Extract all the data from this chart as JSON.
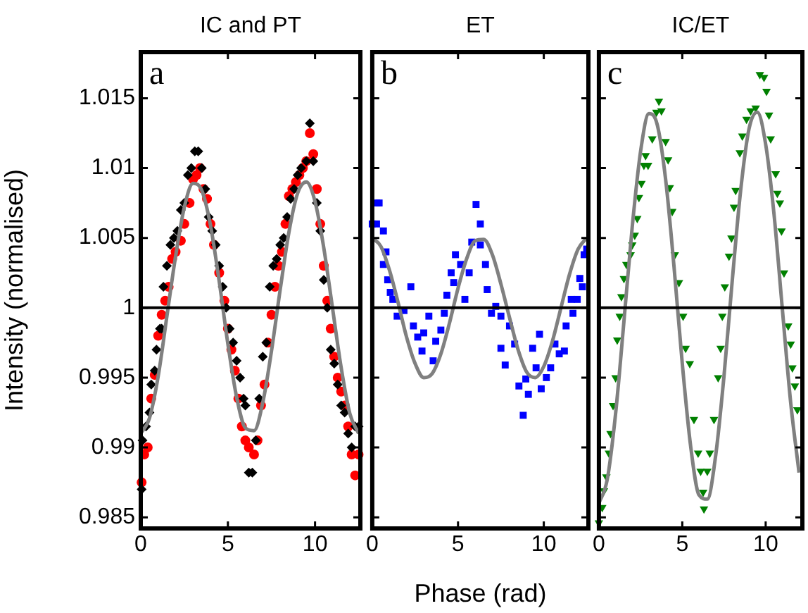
{
  "chart_data": [
    {
      "type": "scatter",
      "title": "IC and PT",
      "ylabel": "Intensity (normalised)",
      "annotations": [
        "a"
      ],
      "xlim": [
        0,
        12.6
      ],
      "xticks": [
        0,
        5,
        10
      ],
      "ylim": [
        0.9842,
        1.0183
      ],
      "yticks": [
        0.985,
        0.99,
        0.995,
        1,
        1.005,
        1.01,
        1.015
      ],
      "grid": false,
      "legend": false,
      "ref_lines": [
        {
          "axis": "y",
          "value": 1,
          "color": "#000000"
        }
      ],
      "series": [
        {
          "marker": "diamond",
          "color": "#000000",
          "x": [
            0.05,
            0.1,
            0.3,
            0.5,
            0.6,
            0.8,
            0.9,
            1.1,
            1.2,
            1.3,
            1.5,
            1.7,
            1.9,
            2.1,
            2.3,
            2.5,
            2.7,
            2.9,
            3.1,
            3.3,
            3.5,
            3.7,
            3.9,
            4.1,
            4.3,
            4.5,
            4.7,
            4.9,
            5.1,
            5.3,
            5.5,
            5.7,
            5.9,
            6.0,
            6.2,
            6.4,
            6.6,
            6.8,
            7.0,
            7.2,
            7.4,
            7.6,
            7.8,
            8.0,
            8.2,
            8.4,
            8.6,
            8.8,
            9.0,
            9.2,
            9.5,
            9.7,
            9.9,
            10.1,
            10.3,
            10.5,
            10.7,
            10.9,
            11.1,
            11.3,
            11.5,
            11.7,
            11.9,
            12.1,
            12.3,
            12.5
          ],
          "values": [
            0.987,
            0.9905,
            0.9915,
            0.9925,
            0.9945,
            0.9955,
            0.997,
            0.9985,
            0.9985,
            1.0015,
            1.003,
            1.0045,
            1.005,
            1.0055,
            1.007,
            1.0075,
            1.0095,
            1.01,
            1.0112,
            1.0112,
            1.01,
            1.0085,
            1.0065,
            1.0055,
            1.0045,
            1.003,
            1.0015,
            1.0,
            0.9985,
            0.9975,
            0.9962,
            0.995,
            0.9935,
            0.993,
            0.9882,
            0.9882,
            0.9905,
            0.9935,
            0.9965,
            0.9975,
            1.0015,
            1.003,
            1.0035,
            1.0045,
            1.005,
            1.0065,
            1.0078,
            1.0085,
            1.0095,
            1.01,
            1.0105,
            1.0132,
            1.0105,
            1.0075,
            1.0055,
            1.002,
            1.0,
            0.997,
            0.996,
            0.9945,
            0.993,
            0.9925,
            0.991,
            0.99,
            0.9915,
            0.9915
          ]
        },
        {
          "marker": "circle",
          "color": "#ff0000",
          "x": [
            0.05,
            0.2,
            0.4,
            0.6,
            0.8,
            1.0,
            1.2,
            1.4,
            1.6,
            1.8,
            2.0,
            2.3,
            2.5,
            2.8,
            3.0,
            3.2,
            3.4,
            3.6,
            3.8,
            4.0,
            4.2,
            4.5,
            4.8,
            5.0,
            5.2,
            5.4,
            5.6,
            5.8,
            6.0,
            6.2,
            6.5,
            6.7,
            6.9,
            7.1,
            7.3,
            7.5,
            7.7,
            7.9,
            8.1,
            8.3,
            8.5,
            8.7,
            8.9,
            9.1,
            9.3,
            9.5,
            9.7,
            9.9,
            10.1,
            10.3,
            10.5,
            10.7,
            10.9,
            11.1,
            11.3,
            11.5,
            11.7,
            11.9,
            12.1,
            12.3,
            12.5
          ],
          "values": [
            0.9875,
            0.9895,
            0.99,
            0.9935,
            0.9952,
            0.998,
            0.9995,
            1.0005,
            1.0015,
            1.0035,
            1.004,
            1.0048,
            1.006,
            1.0075,
            1.0092,
            1.0095,
            1.01,
            1.0085,
            1.0078,
            1.006,
            1.0045,
            1.0025,
            1.0005,
            0.9985,
            0.997,
            0.9955,
            0.9935,
            0.9915,
            0.9905,
            0.99,
            0.9895,
            0.9905,
            0.993,
            0.9945,
            0.9975,
            0.9995,
            1.0015,
            1.003,
            1.004,
            1.006,
            1.008,
            1.0085,
            1.009,
            1.0095,
            1.01,
            1.0105,
            1.0125,
            1.011,
            1.0085,
            1.006,
            1.003,
            1.0005,
            0.9985,
            0.9965,
            0.995,
            0.994,
            0.993,
            0.9915,
            0.9895,
            0.988,
            0.9895
          ]
        },
        {
          "type": "line",
          "marker": "none",
          "color": "#808080",
          "x": [
            0,
            0.5,
            1,
            1.5,
            2,
            2.5,
            3,
            3.5,
            4,
            4.5,
            5,
            5.5,
            6,
            6.5,
            7,
            7.5,
            8,
            8.5,
            9,
            9.5,
            10,
            10.5,
            11,
            11.5,
            12,
            12.5
          ],
          "values": [
            0.991,
            0.9921,
            0.9951,
            0.9994,
            1.0037,
            1.0072,
            1.0089,
            1.0084,
            1.0059,
            1.0019,
            0.9974,
            0.9936,
            0.9914,
            0.9912,
            0.9932,
            0.9969,
            1.0013,
            1.0054,
            1.0082,
            1.009,
            1.0076,
            1.0043,
            1.0,
            0.9957,
            0.9924,
            0.991
          ]
        }
      ]
    },
    {
      "type": "scatter",
      "title": "ET",
      "xlabel": "Phase (rad)",
      "annotations": [
        "b"
      ],
      "xlim": [
        0,
        12.6
      ],
      "xticks": [
        0,
        5,
        10
      ],
      "ylim": [
        0.9842,
        1.0183
      ],
      "yticks": [
        0.985,
        0.99,
        0.995,
        1,
        1.005,
        1.01,
        1.015
      ],
      "tick_labels": "x",
      "grid": false,
      "legend": false,
      "ref_lines": [
        {
          "axis": "y",
          "value": 1,
          "color": "#000000"
        }
      ],
      "series": [
        {
          "marker": "square",
          "color": "#0000ff",
          "x": [
            0.0,
            0.25,
            0.4,
            0.25,
            0.65,
            0.8,
            0.65,
            0.9,
            1.05,
            1.2,
            1.45,
            1.85,
            2.25,
            2.4,
            2.65,
            2.9,
            3.0,
            3.3,
            3.55,
            3.7,
            4.0,
            4.2,
            4.35,
            4.6,
            4.75,
            4.85,
            5.15,
            5.4,
            5.65,
            5.8,
            6.05,
            6.3,
            6.3,
            6.6,
            6.7,
            6.95,
            7.2,
            7.5,
            8.0,
            7.5,
            7.75,
            8.3,
            8.55,
            8.8,
            8.95,
            9.1,
            9.35,
            9.55,
            9.75,
            9.85,
            10.15,
            10.4,
            10.65,
            10.9,
            11.2,
            11.3,
            11.6,
            11.7,
            11.95,
            12.1,
            12.25,
            12.35,
            12.5
          ],
          "values": [
            1.006,
            1.0075,
            1.0075,
            1.006,
            1.0055,
            1.004,
            1.0031,
            1.002,
            1.0011,
            1.0006,
            0.9994,
            0.9998,
            1.0015,
            0.9987,
            0.9979,
            0.9969,
            0.9982,
            0.9994,
            0.9962,
            0.9976,
            0.9984,
            0.9996,
            1.0009,
            1.0025,
            1.0018,
            1.0038,
            1.0031,
            1.0006,
            1.0025,
            1.0047,
            1.0074,
            1.006,
            1.0045,
            1.0031,
            1.0013,
            0.9996,
            1.0001,
            0.9994,
            0.9987,
            0.9971,
            0.9959,
            0.9974,
            0.9944,
            0.9923,
            0.9949,
            0.9938,
            0.9971,
            0.9957,
            0.9981,
            0.9942,
            0.995,
            0.9957,
            0.9974,
            0.9967,
            0.9969,
            0.9987,
            1.0006,
            0.9996,
            1.0006,
            1.0021,
            1.0015,
            1.0038,
            1.0042
          ]
        },
        {
          "type": "line",
          "marker": "none",
          "color": "#808080",
          "x": [
            0,
            0.5,
            1,
            1.5,
            2,
            2.5,
            3,
            3.5,
            4,
            4.5,
            5,
            5.5,
            6,
            6.5,
            7,
            7.5,
            8,
            8.5,
            9,
            9.5,
            10,
            10.5,
            11,
            11.5,
            12,
            12.5
          ],
          "values": [
            1.005,
            1.0044,
            1.0027,
            1.0004,
            0.9979,
            0.996,
            0.995,
            0.9953,
            0.9967,
            0.9989,
            1.0014,
            1.0035,
            1.0048,
            1.0049,
            1.0038,
            1.0017,
            0.9993,
            0.997,
            0.9954,
            0.995,
            0.9958,
            0.9976,
            1.0,
            1.0024,
            1.0042,
            1.005
          ]
        }
      ]
    },
    {
      "type": "scatter",
      "title": "IC/ET",
      "annotations": [
        "c"
      ],
      "xlim": [
        0,
        12.2
      ],
      "xticks": [
        0,
        5,
        10
      ],
      "ylim": [
        0.9842,
        1.0183
      ],
      "yticks": [
        0.985,
        0.99,
        0.995,
        1,
        1.005,
        1.01,
        1.015
      ],
      "tick_labels": "x",
      "grid": false,
      "legend": false,
      "ref_lines": [
        {
          "axis": "y",
          "value": 1,
          "color": "#000000"
        }
      ],
      "series": [
        {
          "marker": "triangle",
          "color": "#008000",
          "x": [
            0,
            0.2,
            0.3,
            0.45,
            0.6,
            0.7,
            0.85,
            1.0,
            1.1,
            1.25,
            1.35,
            1.5,
            1.65,
            1.9,
            2.0,
            2.15,
            2.3,
            2.4,
            2.55,
            2.7,
            2.8,
            2.95,
            3.2,
            3.45,
            3.6,
            3.75,
            4.0,
            4.15,
            4.25,
            4.4,
            4.55,
            4.8,
            5.05,
            5.2,
            5.45,
            5.7,
            5.95,
            6.1,
            6.25,
            6.3,
            6.5,
            6.65,
            6.9,
            7.15,
            7.3,
            7.4,
            7.55,
            7.8,
            7.95,
            8.1,
            8.2,
            8.45,
            8.6,
            8.85,
            9.1,
            9.4,
            9.65,
            9.9,
            10.05,
            10.2,
            10.3,
            10.6,
            10.7,
            10.85,
            10.95,
            11.1,
            11.35,
            11.5,
            11.6,
            11.75,
            11.9
          ],
          "values": [
            0.9846,
            0.9857,
            0.9869,
            0.9879,
            0.9896,
            0.991,
            0.993,
            0.995,
            0.9977,
            0.9994,
            1.0008,
            1.0021,
            1.0031,
            1.0038,
            1.0045,
            1.0052,
            1.0064,
            1.0079,
            1.0089,
            1.0102,
            1.0109,
            1.0102,
            1.0121,
            1.014,
            1.0148,
            1.0141,
            1.0119,
            1.0106,
            1.0086,
            1.0069,
            1.0038,
            1.0018,
            0.9994,
            0.9971,
            0.996,
            0.992,
            0.9896,
            0.9883,
            0.9868,
            0.9856,
            0.9883,
            0.9896,
            0.992,
            0.995,
            0.9971,
            0.9994,
            1.0015,
            1.0037,
            1.005,
            1.0072,
            1.0084,
            1.0111,
            1.0123,
            1.0135,
            1.0141,
            1.0143,
            1.0167,
            1.0165,
            1.0155,
            1.0138,
            1.0121,
            1.0096,
            1.0082,
            1.0075,
            1.0055,
            1.0025,
            0.9987,
            0.9974,
            0.9957,
            0.9944,
            0.9927
          ]
        },
        {
          "type": "line",
          "marker": "none",
          "color": "#808080",
          "x": [
            0,
            0.5,
            1,
            1.5,
            2,
            2.5,
            3,
            3.5,
            4,
            4.5,
            5,
            5.5,
            6,
            6.5,
            7,
            7.5,
            8,
            8.5,
            9,
            9.5,
            10,
            10.5,
            11,
            11.5,
            12
          ],
          "values": [
            0.986,
            0.9877,
            0.9924,
            0.999,
            1.0058,
            1.0112,
            1.0139,
            1.0131,
            1.0092,
            1.003,
            0.996,
            0.9901,
            0.9866,
            0.9863,
            0.9894,
            0.9951,
            1.002,
            1.0084,
            1.0128,
            1.014,
            1.0117,
            1.0067,
            0.9999,
            0.9932,
            0.9882
          ]
        }
      ]
    }
  ]
}
